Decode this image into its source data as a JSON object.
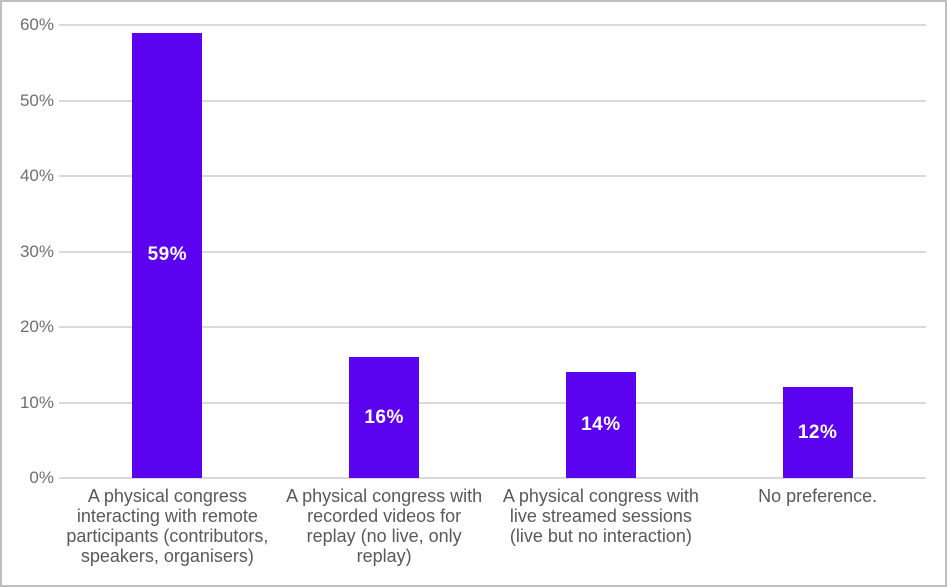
{
  "chart_data": {
    "type": "bar",
    "title": "",
    "xlabel": "",
    "ylabel": "",
    "categories": [
      "A physical congress\ninteracting with remote\nparticipants (contributors,\nspeakers, organisers)",
      "A physical congress with\nrecorded videos for\nreplay (no live, only\nreplay)",
      "A physical congress with\nlive streamed sessions\n(live but no interaction)",
      "No preference."
    ],
    "values": [
      59,
      16,
      14,
      12
    ],
    "value_labels": [
      "59%",
      "16%",
      "14%",
      "12%"
    ],
    "ylim": [
      0,
      60
    ],
    "yticks": [
      0,
      10,
      20,
      30,
      40,
      50,
      60
    ],
    "ytick_labels": [
      "0%",
      "10%",
      "20%",
      "30%",
      "40%",
      "50%",
      "60%"
    ],
    "grid": true,
    "legend": false,
    "colors": {
      "bar": "#5b03f0",
      "value_label_text": "#ffffff",
      "gridline": "#d9d9d9",
      "y_tick_text": "#6f6f6f",
      "category_text": "#595959",
      "chart_border": "#bfbfbf",
      "background": "#ffffff"
    }
  }
}
